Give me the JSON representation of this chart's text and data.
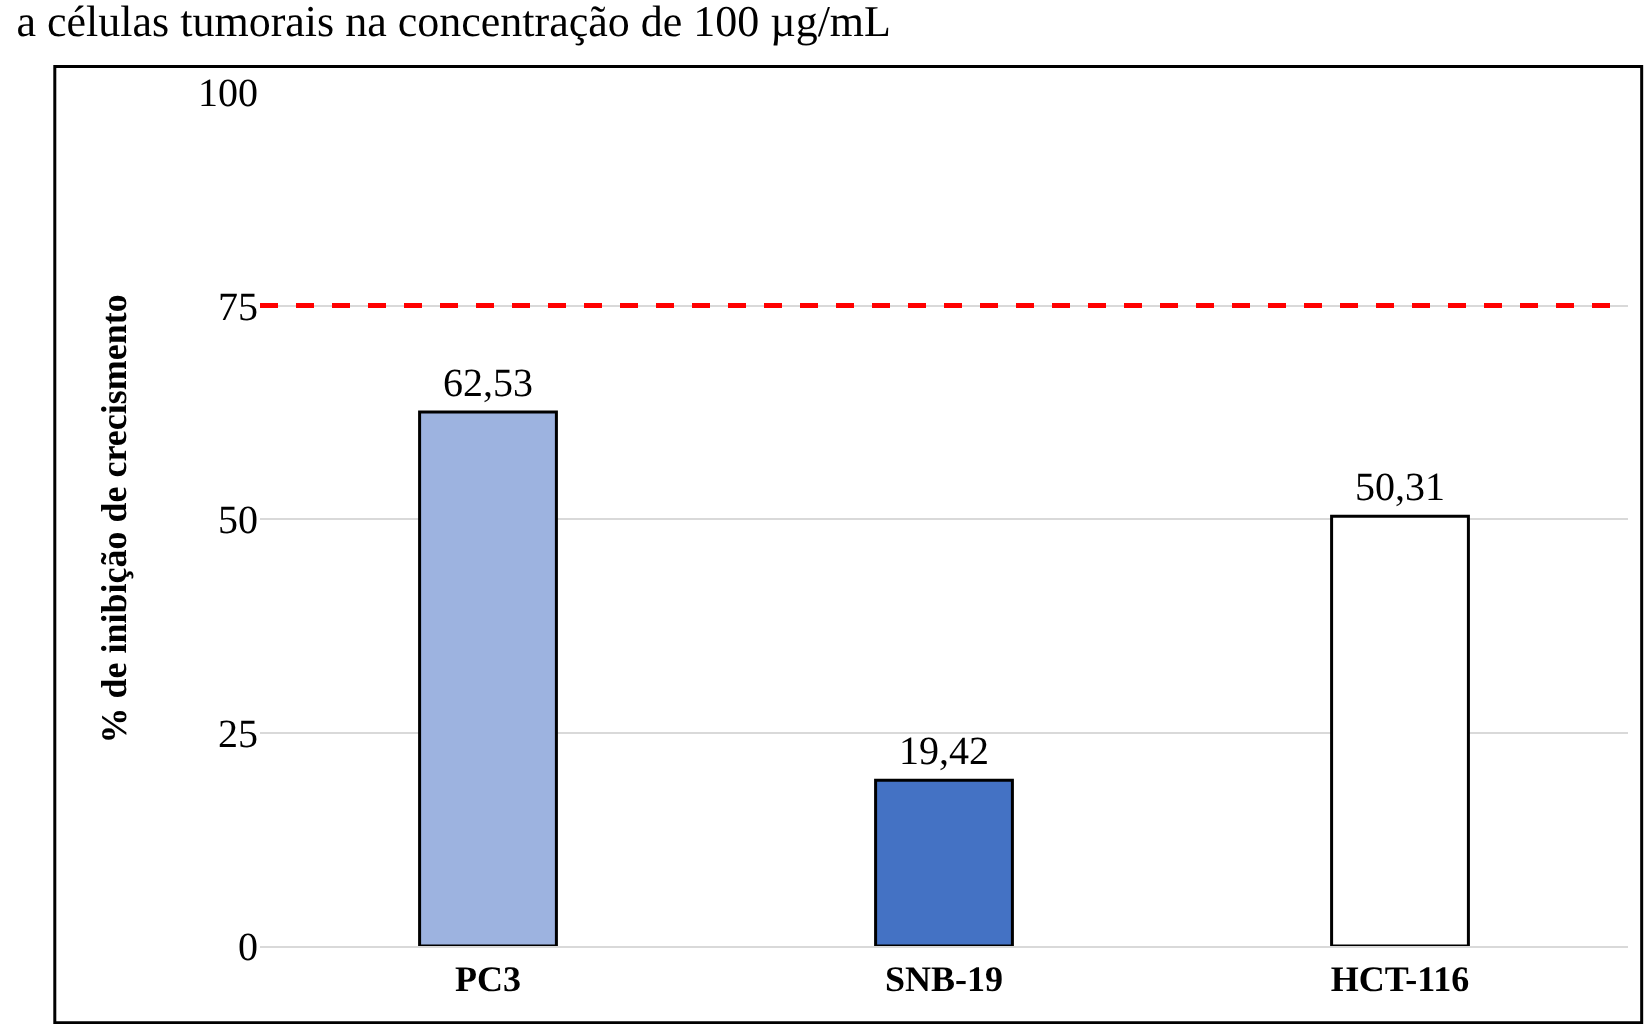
{
  "chart_data": {
    "type": "bar",
    "title": "a células tumorais na concentração de 100 µg/mL",
    "ylabel": "% de inibição de crecismento",
    "categories": [
      "PC3",
      "SNB-19",
      "HCT-116"
    ],
    "values": [
      62.53,
      19.42,
      50.31
    ],
    "value_labels": [
      "62,53",
      "19,42",
      "50,31"
    ],
    "colors": [
      "#9db3e0",
      "#4472c4",
      "#ffffff"
    ],
    "ylim": [
      0,
      100
    ],
    "yticks": [
      0,
      25,
      50,
      75,
      100
    ],
    "grid": "y",
    "ref_lines": [
      {
        "axis": "y",
        "value": 75,
        "color": "#ff0000",
        "line_style": "dashed"
      }
    ]
  }
}
